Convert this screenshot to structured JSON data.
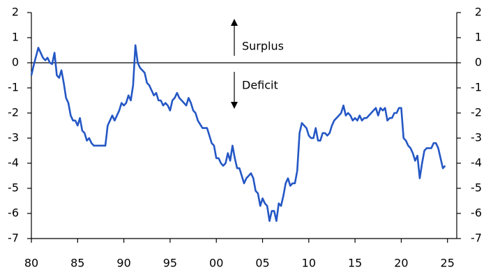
{
  "chart_data": {
    "type": "line",
    "annotations": [
      "Surplus",
      "Deficit"
    ],
    "x": [
      1980.0,
      1980.25,
      1980.75,
      1981.0,
      1981.25,
      1981.5,
      1981.75,
      1982.0,
      1982.25,
      1982.5,
      1982.75,
      1983.0,
      1983.25,
      1983.5,
      1983.75,
      1984.0,
      1984.25,
      1984.5,
      1984.75,
      1985.0,
      1985.25,
      1985.5,
      1985.75,
      1986.0,
      1986.25,
      1986.5,
      1986.75,
      1987.0,
      1987.5,
      1988.0,
      1988.25,
      1988.5,
      1988.75,
      1989.0,
      1989.5,
      1989.75,
      1990.0,
      1990.25,
      1990.5,
      1990.75,
      1991.0,
      1991.25,
      1991.5,
      1991.75,
      1992.0,
      1992.25,
      1992.5,
      1992.75,
      1993.0,
      1993.25,
      1993.5,
      1993.75,
      1994.0,
      1994.25,
      1994.5,
      1994.75,
      1995.0,
      1995.25,
      1995.5,
      1995.75,
      1996.0,
      1996.5,
      1996.75,
      1997.0,
      1997.25,
      1997.5,
      1997.75,
      1998.0,
      1998.5,
      1999.0,
      1999.25,
      1999.5,
      1999.75,
      2000.0,
      2000.25,
      2000.5,
      2000.75,
      2001.0,
      2001.25,
      2001.5,
      2001.75,
      2002.0,
      2002.25,
      2002.5,
      2002.75,
      2003.0,
      2003.25,
      2003.5,
      2003.75,
      2004.0,
      2004.25,
      2004.5,
      2004.75,
      2005.0,
      2005.25,
      2005.5,
      2005.75,
      2006.0,
      2006.25,
      2006.5,
      2006.75,
      2007.0,
      2007.25,
      2007.5,
      2007.75,
      2008.0,
      2008.25,
      2008.5,
      2008.75,
      2009.0,
      2009.25,
      2009.5,
      2009.75,
      2010.0,
      2010.25,
      2010.5,
      2010.75,
      2011.0,
      2011.25,
      2011.5,
      2011.75,
      2012.0,
      2012.25,
      2012.5,
      2012.75,
      2013.0,
      2013.25,
      2013.5,
      2013.75,
      2014.0,
      2014.25,
      2014.5,
      2014.75,
      2015.0,
      2015.25,
      2015.5,
      2015.75,
      2016.0,
      2016.25,
      2016.5,
      2016.75,
      2017.0,
      2017.25,
      2017.5,
      2017.75,
      2018.0,
      2018.25,
      2018.5,
      2018.75,
      2019.0,
      2019.25,
      2019.5,
      2019.75,
      2020.0,
      2020.25,
      2020.5,
      2020.75,
      2021.0,
      2021.25,
      2021.5,
      2021.75,
      2022.0,
      2022.25,
      2022.5,
      2022.75,
      2023.0,
      2023.25,
      2023.5,
      2023.75,
      2024.0,
      2024.25,
      2024.5,
      2024.75
    ],
    "series": [
      {
        "color": "#2457c5",
        "values": [
          -0.5,
          -0.1,
          0.6,
          0.4,
          0.2,
          0.1,
          0.2,
          0.0,
          -0.05,
          0.4,
          -0.5,
          -0.6,
          -0.3,
          -0.8,
          -1.4,
          -1.6,
          -2.1,
          -2.3,
          -2.3,
          -2.5,
          -2.2,
          -2.7,
          -2.8,
          -3.1,
          -3.0,
          -3.2,
          -3.3,
          -3.3,
          -3.3,
          -3.3,
          -2.5,
          -2.3,
          -2.1,
          -2.3,
          -1.9,
          -1.6,
          -1.7,
          -1.6,
          -1.3,
          -1.5,
          -0.9,
          0.7,
          0.0,
          -0.2,
          -0.3,
          -0.4,
          -0.8,
          -0.9,
          -1.1,
          -1.3,
          -1.2,
          -1.5,
          -1.5,
          -1.7,
          -1.6,
          -1.7,
          -1.9,
          -1.5,
          -1.4,
          -1.2,
          -1.4,
          -1.6,
          -1.7,
          -1.4,
          -1.6,
          -1.9,
          -2.0,
          -2.3,
          -2.6,
          -2.6,
          -2.9,
          -3.2,
          -3.3,
          -3.8,
          -3.8,
          -4.0,
          -4.1,
          -4.0,
          -3.6,
          -3.9,
          -3.3,
          -3.8,
          -4.2,
          -4.2,
          -4.5,
          -4.8,
          -4.6,
          -4.5,
          -4.4,
          -4.6,
          -5.1,
          -5.2,
          -5.7,
          -5.4,
          -5.6,
          -5.7,
          -6.3,
          -5.9,
          -5.9,
          -6.3,
          -5.6,
          -5.7,
          -5.3,
          -4.8,
          -4.6,
          -4.9,
          -4.8,
          -4.8,
          -4.3,
          -2.8,
          -2.4,
          -2.5,
          -2.6,
          -2.9,
          -3.0,
          -3.0,
          -2.6,
          -3.1,
          -3.1,
          -2.8,
          -2.8,
          -2.9,
          -2.8,
          -2.5,
          -2.3,
          -2.2,
          -2.1,
          -2.0,
          -1.7,
          -2.1,
          -2.0,
          -2.1,
          -2.3,
          -2.2,
          -2.3,
          -2.1,
          -2.3,
          -2.2,
          -2.2,
          -2.1,
          -2.0,
          -1.9,
          -1.8,
          -2.1,
          -1.8,
          -1.9,
          -1.8,
          -2.3,
          -2.2,
          -2.2,
          -2.0,
          -2.0,
          -1.8,
          -1.8,
          -3.0,
          -3.1,
          -3.3,
          -3.4,
          -3.6,
          -3.9,
          -3.7,
          -4.6,
          -4.0,
          -3.5,
          -3.4,
          -3.4,
          -3.4,
          -3.2,
          -3.2,
          -3.4,
          -3.8,
          -4.2,
          -4.1
        ]
      }
    ],
    "xlim": [
      1980,
      2026
    ],
    "xticks": [
      {
        "value": 1980,
        "label": "80"
      },
      {
        "value": 1985,
        "label": "85"
      },
      {
        "value": 1990,
        "label": "90"
      },
      {
        "value": 1995,
        "label": "95"
      },
      {
        "value": 2000,
        "label": "00"
      },
      {
        "value": 2005,
        "label": "05"
      },
      {
        "value": 2010,
        "label": "10"
      },
      {
        "value": 2015,
        "label": "15"
      },
      {
        "value": 2020,
        "label": "20"
      },
      {
        "value": 2025,
        "label": "25"
      }
    ],
    "ylim": [
      -7,
      2
    ],
    "yticks": [
      2,
      1,
      0,
      -1,
      -2,
      -3,
      -4,
      -5,
      -6,
      -7
    ],
    "y2lim": [
      -7,
      2
    ],
    "y2ticks": [
      2,
      1,
      0,
      -1,
      -2,
      -3,
      -4,
      -5,
      -6,
      -7
    ]
  }
}
